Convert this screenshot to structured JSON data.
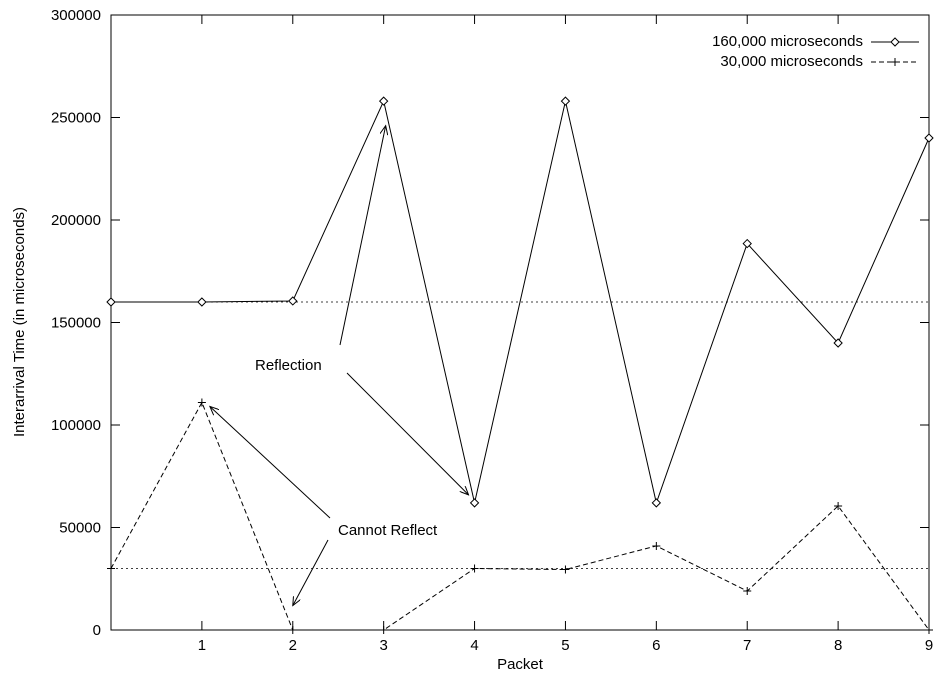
{
  "chart_data": {
    "type": "line",
    "xlabel": "Packet",
    "ylabel": "Interarrival Time (in microseconds)",
    "xlim": [
      0,
      9
    ],
    "ylim": [
      0,
      300000
    ],
    "xticks": [
      1,
      2,
      3,
      4,
      5,
      6,
      7,
      8,
      9
    ],
    "yticks": [
      0,
      50000,
      100000,
      150000,
      200000,
      250000,
      300000
    ],
    "grid": false,
    "legend_position": "top-right",
    "series": [
      {
        "name": "160,000 microseconds",
        "marker": "diamond",
        "line_style": "solid",
        "x": [
          0,
          1,
          2,
          3,
          4,
          5,
          6,
          7,
          8,
          9
        ],
        "values": [
          160000,
          160000,
          160500,
          258000,
          62000,
          258000,
          62000,
          188500,
          140000,
          240000
        ]
      },
      {
        "name": "30,000 microseconds",
        "marker": "plus",
        "line_style": "dashed",
        "x": [
          0,
          1,
          2,
          3,
          4,
          5,
          6,
          7,
          8,
          9
        ],
        "values": [
          30000,
          111000,
          0,
          0,
          30000,
          29500,
          41000,
          19000,
          60500,
          0
        ]
      }
    ],
    "reference_lines": [
      {
        "y": 160000,
        "style": "dotted"
      },
      {
        "y": 30000,
        "style": "dotted"
      }
    ],
    "annotations": [
      {
        "text": "Reflection",
        "arrow_targets": [
          [
            3,
            246000
          ],
          [
            4,
            62000
          ]
        ]
      },
      {
        "text": "Cannot Reflect",
        "arrow_targets": [
          [
            1,
            111000
          ],
          [
            2,
            8000
          ]
        ]
      }
    ]
  }
}
